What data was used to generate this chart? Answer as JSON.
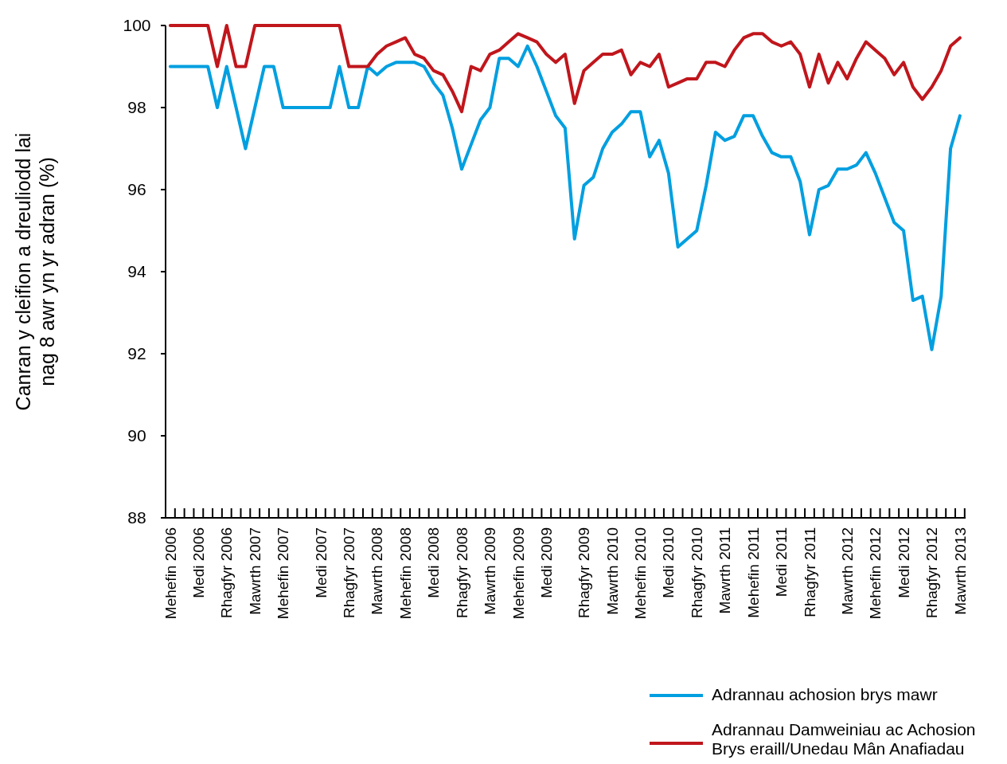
{
  "chart_data": {
    "type": "line",
    "ylabel": "Canran y cleifion a dreuliodd lai\nnag 8 awr yn yr adran (%)",
    "categories": [
      "Mehefin 2006",
      null,
      null,
      "Medi 2006",
      null,
      null,
      "Rhagfyr 2006",
      null,
      null,
      "Mawrth 2007",
      null,
      null,
      "Mehefin 2007",
      null,
      null,
      null,
      "Medi 2007",
      null,
      null,
      "Rhagfyr 2007",
      null,
      null,
      "Mawrth 2008",
      null,
      null,
      "Mehefin 2008",
      null,
      null,
      "Medi 2008",
      null,
      null,
      "Rhagfyr 2008",
      null,
      null,
      "Mawrth 2009",
      null,
      null,
      "Mehefin 2009",
      null,
      null,
      "Medi 2009",
      null,
      null,
      null,
      "Rhagfyr 2009",
      null,
      null,
      "Mawrth 2010",
      null,
      null,
      "Mehefin 2010",
      null,
      null,
      "Medi 2010",
      null,
      null,
      "Rhagfyr 2010",
      null,
      null,
      "Mawrth 2011",
      null,
      null,
      "Mehefin 2011",
      null,
      null,
      "Medi 2011",
      null,
      null,
      "Rhagfyr 2011",
      null,
      null,
      null,
      "Mawrth 2012",
      null,
      null,
      "Mehefin 2012",
      null,
      null,
      "Medi 2012",
      null,
      null,
      "Rhagfyr 2012",
      null,
      null,
      "Mawrth 2013"
    ],
    "series": [
      {
        "name": "Adrannau achosion brys mawr",
        "color": "#009fe0",
        "values": [
          99,
          99,
          99,
          99,
          99,
          98,
          99,
          98,
          97,
          98,
          99,
          99,
          98,
          98,
          98,
          98,
          98,
          98,
          99,
          98,
          98,
          99,
          98.8,
          99,
          99.1,
          99.1,
          99.1,
          99.0,
          98.6,
          98.3,
          97.5,
          96.5,
          97.1,
          97.7,
          98.0,
          99.2,
          99.2,
          99.0,
          99.5,
          99.0,
          98.4,
          97.8,
          97.5,
          94.8,
          96.1,
          96.3,
          97.0,
          97.4,
          97.6,
          97.9,
          97.9,
          96.8,
          97.2,
          96.4,
          94.6,
          94.8,
          95.0,
          96.1,
          97.4,
          97.2,
          97.3,
          97.8,
          97.8,
          97.3,
          96.9,
          96.8,
          96.8,
          96.2,
          94.9,
          96.0,
          96.1,
          96.5,
          96.5,
          96.6,
          96.9,
          96.4,
          95.8,
          95.2,
          95.0,
          93.3,
          93.4,
          92.1,
          93.4,
          97.0,
          97.8
        ]
      },
      {
        "name": "Adrannau Damweiniau ac Achosion Brys eraill/Unedau Mân Anafiadau",
        "color": "#c0161c",
        "values": [
          100,
          100,
          100,
          100,
          100,
          99,
          100,
          99,
          99,
          100,
          100,
          100,
          100,
          100,
          100,
          100,
          100,
          100,
          100,
          99,
          99,
          99,
          99.3,
          99.5,
          99.6,
          99.7,
          99.3,
          99.2,
          98.9,
          98.8,
          98.4,
          97.9,
          99.0,
          98.9,
          99.3,
          99.4,
          99.6,
          99.8,
          99.7,
          99.6,
          99.3,
          99.1,
          99.3,
          98.1,
          98.9,
          99.1,
          99.3,
          99.3,
          99.4,
          98.8,
          99.1,
          99.0,
          99.3,
          98.5,
          98.6,
          98.7,
          98.7,
          99.1,
          99.1,
          99.0,
          99.4,
          99.7,
          99.8,
          99.8,
          99.6,
          99.5,
          99.6,
          99.3,
          98.5,
          99.3,
          98.6,
          99.1,
          98.7,
          99.2,
          99.6,
          99.4,
          99.2,
          98.8,
          99.1,
          98.5,
          98.2,
          98.5,
          98.9,
          99.5,
          99.7
        ]
      }
    ],
    "ylim": [
      88,
      100
    ],
    "yticks": [
      88,
      90,
      92,
      94,
      96,
      98,
      100
    ],
    "grid": false,
    "legend": "bottom right",
    "marker": "none",
    "line_style": "solid"
  }
}
